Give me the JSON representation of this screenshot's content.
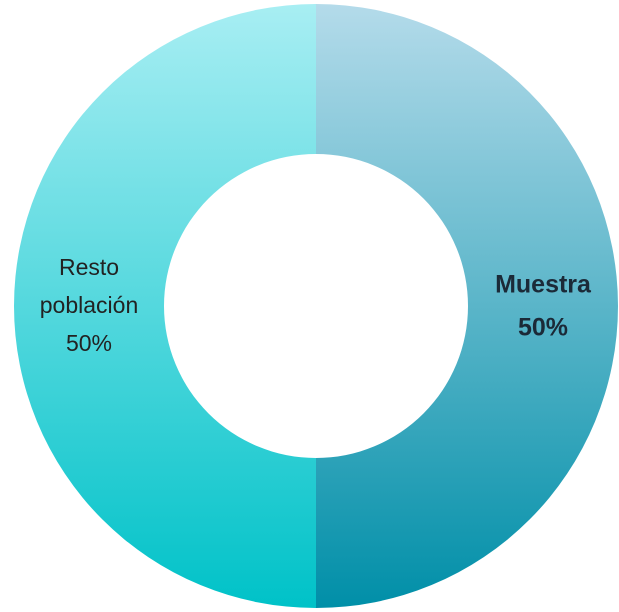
{
  "chart_data": {
    "type": "donut",
    "categories": [
      "Muestra",
      "Resto población"
    ],
    "values": [
      50,
      50
    ],
    "value_labels": [
      "50%",
      "50%"
    ],
    "colors": [
      [
        "#b4dbea",
        "#008fa8"
      ],
      [
        "#a8eef3",
        "#00c2c8"
      ]
    ]
  }
}
